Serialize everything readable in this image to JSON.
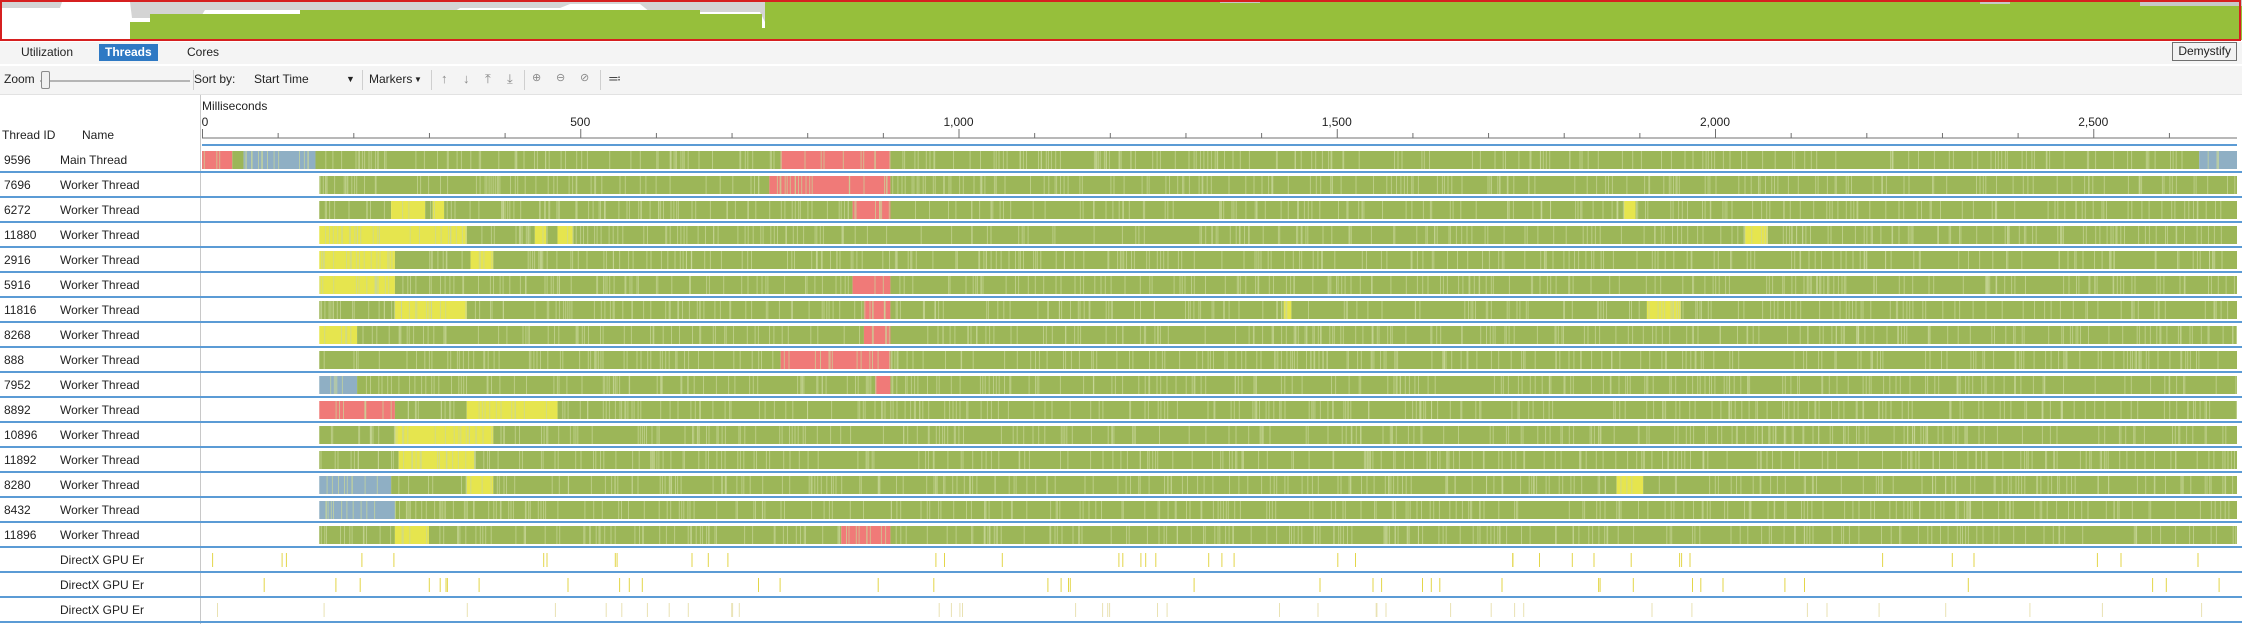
{
  "tabs": [
    {
      "label": "Utilization",
      "active": false
    },
    {
      "label": "Threads",
      "active": true
    },
    {
      "label": "Cores",
      "active": false
    }
  ],
  "demystify_label": "Demystify",
  "toolbar": {
    "zoom_label": "Zoom",
    "sort_label": "Sort by:",
    "sort_value": "Start Time",
    "markers_label": "Markers"
  },
  "columns": {
    "thread_id": "Thread ID",
    "name": "Name"
  },
  "axis": {
    "unit": "Milliseconds",
    "ticks": [
      {
        "label": "0",
        "value": 0
      },
      {
        "label": "500",
        "value": 500
      },
      {
        "label": "1,000",
        "value": 1000
      },
      {
        "label": "1,500",
        "value": 1500
      },
      {
        "label": "2,000",
        "value": 2000
      },
      {
        "label": "2,500",
        "value": 2500
      }
    ],
    "max": 2690
  },
  "colors": {
    "execution": "#9cb658",
    "synchronization": "#f07a78",
    "io": "#e6e54e",
    "sleep": "#8fafc4",
    "overview_fill": "#96bf3b",
    "overview_gray": "#c8c8c8",
    "accent": "#2e79c4",
    "row_divider": "#5b9bd5"
  },
  "threads": [
    {
      "id": "9596",
      "name": "Main Thread",
      "segs": [
        [
          0,
          40,
          "s"
        ],
        [
          40,
          55,
          "e"
        ],
        [
          55,
          150,
          "b"
        ],
        [
          150,
          765,
          "e"
        ],
        [
          765,
          910,
          "s"
        ],
        [
          910,
          2640,
          "e"
        ],
        [
          2640,
          2690,
          "b"
        ]
      ]
    },
    {
      "id": "7696",
      "name": "Worker Thread",
      "segs": [
        [
          155,
          750,
          "e"
        ],
        [
          750,
          910,
          "s"
        ],
        [
          910,
          2690,
          "e"
        ]
      ]
    },
    {
      "id": "6272",
      "name": "Worker Thread",
      "segs": [
        [
          155,
          250,
          "e"
        ],
        [
          250,
          295,
          "y"
        ],
        [
          295,
          305,
          "e"
        ],
        [
          305,
          320,
          "y"
        ],
        [
          320,
          860,
          "e"
        ],
        [
          860,
          910,
          "s"
        ],
        [
          910,
          1880,
          "e"
        ],
        [
          1880,
          1895,
          "y"
        ],
        [
          1895,
          2690,
          "e"
        ]
      ]
    },
    {
      "id": "11880",
      "name": "Worker Thread",
      "segs": [
        [
          155,
          350,
          "y"
        ],
        [
          350,
          440,
          "e"
        ],
        [
          440,
          455,
          "y"
        ],
        [
          455,
          470,
          "e"
        ],
        [
          470,
          490,
          "y"
        ],
        [
          490,
          2040,
          "e"
        ],
        [
          2040,
          2070,
          "y"
        ],
        [
          2070,
          2690,
          "e"
        ]
      ]
    },
    {
      "id": "2916",
      "name": "Worker Thread",
      "segs": [
        [
          155,
          255,
          "y"
        ],
        [
          255,
          355,
          "e"
        ],
        [
          355,
          385,
          "y"
        ],
        [
          385,
          2690,
          "e"
        ]
      ]
    },
    {
      "id": "5916",
      "name": "Worker Thread",
      "segs": [
        [
          155,
          255,
          "y"
        ],
        [
          255,
          860,
          "e"
        ],
        [
          860,
          910,
          "s"
        ],
        [
          910,
          2690,
          "e"
        ]
      ]
    },
    {
      "id": "11816",
      "name": "Worker Thread",
      "segs": [
        [
          155,
          255,
          "e"
        ],
        [
          255,
          350,
          "y"
        ],
        [
          350,
          875,
          "e"
        ],
        [
          875,
          910,
          "s"
        ],
        [
          910,
          1430,
          "e"
        ],
        [
          1430,
          1440,
          "y"
        ],
        [
          1440,
          1910,
          "e"
        ],
        [
          1910,
          1955,
          "y"
        ],
        [
          1955,
          2690,
          "e"
        ]
      ]
    },
    {
      "id": "8268",
      "name": "Worker Thread",
      "segs": [
        [
          155,
          205,
          "y"
        ],
        [
          205,
          875,
          "e"
        ],
        [
          875,
          910,
          "s"
        ],
        [
          910,
          2690,
          "e"
        ]
      ]
    },
    {
      "id": "888",
      "name": "Worker Thread",
      "segs": [
        [
          155,
          765,
          "e"
        ],
        [
          765,
          910,
          "s"
        ],
        [
          910,
          2690,
          "e"
        ]
      ]
    },
    {
      "id": "7952",
      "name": "Worker Thread",
      "segs": [
        [
          155,
          205,
          "b"
        ],
        [
          205,
          890,
          "e"
        ],
        [
          890,
          910,
          "s"
        ],
        [
          910,
          2690,
          "e"
        ]
      ]
    },
    {
      "id": "8892",
      "name": "Worker Thread",
      "segs": [
        [
          155,
          255,
          "s"
        ],
        [
          255,
          350,
          "e"
        ],
        [
          350,
          470,
          "y"
        ],
        [
          470,
          2690,
          "e"
        ]
      ]
    },
    {
      "id": "10896",
      "name": "Worker Thread",
      "segs": [
        [
          155,
          255,
          "e"
        ],
        [
          255,
          385,
          "y"
        ],
        [
          385,
          2690,
          "e"
        ]
      ]
    },
    {
      "id": "11892",
      "name": "Worker Thread",
      "segs": [
        [
          155,
          260,
          "e"
        ],
        [
          260,
          360,
          "y"
        ],
        [
          360,
          2690,
          "e"
        ]
      ]
    },
    {
      "id": "8280",
      "name": "Worker Thread",
      "segs": [
        [
          155,
          250,
          "b"
        ],
        [
          250,
          350,
          "e"
        ],
        [
          350,
          385,
          "y"
        ],
        [
          385,
          1870,
          "e"
        ],
        [
          1870,
          1905,
          "y"
        ],
        [
          1905,
          2690,
          "e"
        ]
      ]
    },
    {
      "id": "8432",
      "name": "Worker Thread",
      "segs": [
        [
          155,
          255,
          "b"
        ],
        [
          255,
          2690,
          "e"
        ]
      ]
    },
    {
      "id": "11896",
      "name": "Worker Thread",
      "segs": [
        [
          155,
          255,
          "e"
        ],
        [
          255,
          300,
          "y"
        ],
        [
          300,
          845,
          "e"
        ],
        [
          845,
          910,
          "s"
        ],
        [
          910,
          2690,
          "e"
        ]
      ]
    },
    {
      "id": "",
      "name": "DirectX GPU Er",
      "segs": []
    },
    {
      "id": "",
      "name": "DirectX GPU Er",
      "segs": []
    },
    {
      "id": "",
      "name": "DirectX GPU Er",
      "segs": []
    }
  ]
}
